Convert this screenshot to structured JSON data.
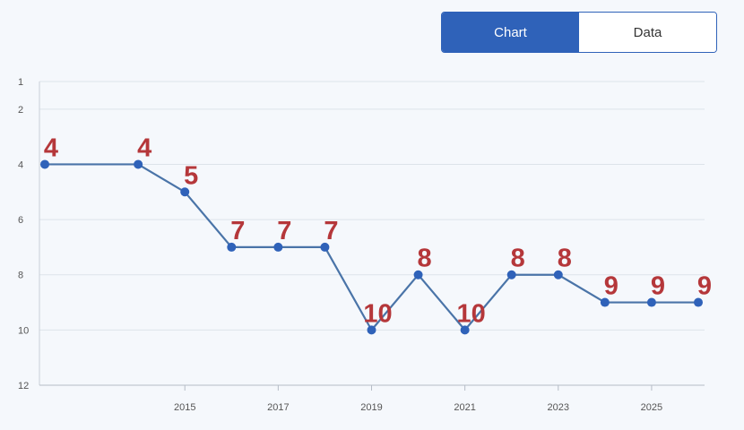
{
  "toggle": {
    "chart_label": "Chart",
    "data_label": "Data",
    "active": "chart"
  },
  "colors": {
    "accent": "#2f62b9",
    "line": "#4a74a8",
    "point": "#2f62b9",
    "data_label": "#b5373a",
    "grid": "#dde3ea",
    "background": "#f5f8fc"
  },
  "chart_data": {
    "type": "line",
    "title": "",
    "xlabel": "",
    "ylabel": "",
    "y_inverted": true,
    "ylim": [
      1,
      12
    ],
    "y_ticks": [
      1,
      2,
      4,
      6,
      8,
      10,
      12
    ],
    "xlim": [
      2012,
      2026
    ],
    "x_ticks": [
      2015,
      2017,
      2019,
      2021,
      2023,
      2025
    ],
    "grid": true,
    "series": [
      {
        "x": [
          2012,
          2014,
          2015,
          2016,
          2017,
          2018,
          2019,
          2020,
          2021,
          2022,
          2023,
          2024,
          2025,
          2026
        ],
        "values": [
          4,
          4,
          5,
          7,
          7,
          7,
          10,
          8,
          10,
          8,
          8,
          9,
          9,
          9
        ],
        "labels": [
          "4",
          "4",
          "5",
          "7",
          "7",
          "7",
          "10",
          "8",
          "10",
          "8",
          "8",
          "9",
          "9",
          "9"
        ]
      }
    ]
  }
}
